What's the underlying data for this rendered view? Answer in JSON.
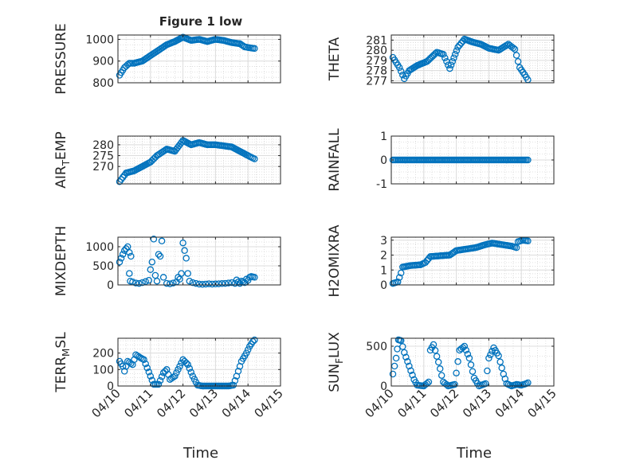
{
  "figure": {
    "title": "Figure 1 low",
    "xlabel": "Time",
    "xtick_labels": [
      "04/10",
      "04/11",
      "04/12",
      "04/13",
      "04/14",
      "04/15"
    ],
    "marker_color": "#0072BD"
  },
  "chart_data": [
    {
      "type": "scatter",
      "name": "pressure",
      "ylabel": "PRESSURE",
      "xlim": [
        0,
        5
      ],
      "ylim": [
        800,
        1020
      ],
      "yticks": [
        800,
        900,
        1000
      ],
      "ytick_labels": [
        "800",
        "900",
        "1000"
      ],
      "series": [
        {
          "name": "PRESSURE",
          "kind": "points",
          "anchors": [
            [
              0.05,
              835
            ],
            [
              0.2,
              870
            ],
            [
              0.35,
              890
            ],
            [
              0.5,
              890
            ],
            [
              0.75,
              900
            ],
            [
              1.0,
              925
            ],
            [
              1.25,
              950
            ],
            [
              1.5,
              975
            ],
            [
              1.75,
              990
            ],
            [
              2.0,
              1010
            ],
            [
              2.25,
              995
            ],
            [
              2.5,
              1000
            ],
            [
              2.75,
              990
            ],
            [
              3.0,
              1000
            ],
            [
              3.25,
              995
            ],
            [
              3.5,
              985
            ],
            [
              3.75,
              980
            ],
            [
              3.9,
              965
            ],
            [
              4.1,
              960
            ],
            [
              4.2,
              958
            ]
          ]
        }
      ]
    },
    {
      "type": "scatter",
      "name": "theta",
      "ylabel": "THETA",
      "xlim": [
        0,
        5
      ],
      "ylim": [
        276.8,
        281.5
      ],
      "yticks": [
        277,
        278,
        279,
        280,
        281
      ],
      "ytick_labels": [
        "277",
        "278",
        "279",
        "280",
        "281"
      ],
      "series": [
        {
          "name": "THETA",
          "kind": "points",
          "anchors": [
            [
              0.05,
              279.3
            ],
            [
              0.25,
              278.3
            ],
            [
              0.4,
              277.2
            ],
            [
              0.55,
              278.0
            ],
            [
              0.8,
              278.5
            ],
            [
              1.1,
              278.9
            ],
            [
              1.4,
              279.8
            ],
            [
              1.6,
              279.6
            ],
            [
              1.8,
              278.2
            ],
            [
              2.05,
              280.3
            ],
            [
              2.25,
              281.1
            ],
            [
              2.5,
              280.8
            ],
            [
              2.75,
              280.6
            ],
            [
              3.0,
              280.2
            ],
            [
              3.3,
              280.0
            ],
            [
              3.6,
              280.6
            ],
            [
              3.8,
              280.1
            ],
            [
              3.95,
              278.3
            ],
            [
              4.1,
              277.6
            ],
            [
              4.2,
              277.1
            ]
          ]
        }
      ]
    },
    {
      "type": "scatter",
      "name": "air-temp",
      "ylabel": "AIR_TEMP",
      "xlim": [
        0,
        5
      ],
      "ylim": [
        262,
        284
      ],
      "yticks": [
        270,
        275,
        280
      ],
      "ytick_labels": [
        "270",
        "275",
        "280"
      ],
      "series": [
        {
          "name": "AIR_TEMP",
          "kind": "points",
          "anchors": [
            [
              0.05,
              263
            ],
            [
              0.25,
              267
            ],
            [
              0.5,
              268
            ],
            [
              0.75,
              270
            ],
            [
              1.0,
              272
            ],
            [
              1.2,
              275
            ],
            [
              1.5,
              278
            ],
            [
              1.75,
              277
            ],
            [
              2.0,
              282
            ],
            [
              2.25,
              280
            ],
            [
              2.5,
              281
            ],
            [
              2.75,
              280
            ],
            [
              3.0,
              280
            ],
            [
              3.25,
              279.5
            ],
            [
              3.5,
              279
            ],
            [
              3.75,
              277
            ],
            [
              4.0,
              275
            ],
            [
              4.2,
              273.5
            ]
          ]
        }
      ]
    },
    {
      "type": "scatter",
      "name": "rainfall",
      "ylabel": "RAINFALL",
      "xlim": [
        0,
        5
      ],
      "ylim": [
        -1,
        1
      ],
      "yticks": [
        -1,
        0,
        1
      ],
      "ytick_labels": [
        "-1",
        "0",
        "1"
      ],
      "series": [
        {
          "name": "RAINFALL",
          "kind": "points",
          "anchors": [
            [
              0.05,
              0
            ],
            [
              4.2,
              0
            ]
          ]
        }
      ]
    },
    {
      "type": "scatter",
      "name": "mixdepth",
      "ylabel": "MIXDEPTH",
      "xlim": [
        0,
        5
      ],
      "ylim": [
        0,
        1250
      ],
      "yticks": [
        0,
        500,
        1000
      ],
      "ytick_labels": [
        "0",
        "500",
        "1000"
      ],
      "series": [
        {
          "name": "MIXDEPTH",
          "kind": "pairs",
          "points": [
            [
              0.05,
              600
            ],
            [
              0.1,
              700
            ],
            [
              0.15,
              800
            ],
            [
              0.2,
              900
            ],
            [
              0.25,
              950
            ],
            [
              0.3,
              1000
            ],
            [
              0.35,
              850
            ],
            [
              0.4,
              750
            ],
            [
              0.35,
              300
            ],
            [
              0.38,
              100
            ],
            [
              0.45,
              80
            ],
            [
              0.55,
              50
            ],
            [
              0.65,
              40
            ],
            [
              0.75,
              60
            ],
            [
              0.85,
              90
            ],
            [
              0.95,
              120
            ],
            [
              1.0,
              400
            ],
            [
              1.05,
              600
            ],
            [
              1.1,
              1200
            ],
            [
              1.15,
              250
            ],
            [
              1.2,
              100
            ],
            [
              1.25,
              800
            ],
            [
              1.3,
              750
            ],
            [
              1.35,
              1150
            ],
            [
              1.4,
              200
            ],
            [
              1.5,
              40
            ],
            [
              1.6,
              30
            ],
            [
              1.7,
              50
            ],
            [
              1.8,
              80
            ],
            [
              1.85,
              200
            ],
            [
              1.9,
              150
            ],
            [
              1.95,
              300
            ],
            [
              2.0,
              1100
            ],
            [
              2.05,
              900
            ],
            [
              2.1,
              700
            ],
            [
              2.15,
              300
            ],
            [
              2.2,
              100
            ],
            [
              2.3,
              60
            ],
            [
              2.4,
              40
            ],
            [
              2.5,
              20
            ],
            [
              2.6,
              15
            ],
            [
              2.7,
              20
            ],
            [
              2.8,
              30
            ],
            [
              2.9,
              20
            ],
            [
              3.0,
              25
            ],
            [
              3.1,
              30
            ],
            [
              3.2,
              35
            ],
            [
              3.3,
              40
            ],
            [
              3.4,
              50
            ],
            [
              3.5,
              60
            ],
            [
              3.6,
              40
            ],
            [
              3.65,
              130
            ],
            [
              3.7,
              80
            ],
            [
              3.75,
              40
            ],
            [
              3.8,
              100
            ],
            [
              3.85,
              80
            ],
            [
              3.9,
              60
            ],
            [
              3.95,
              150
            ],
            [
              4.0,
              120
            ],
            [
              4.05,
              200
            ],
            [
              4.1,
              220
            ],
            [
              4.15,
              210
            ],
            [
              4.2,
              200
            ]
          ]
        }
      ]
    },
    {
      "type": "scatter",
      "name": "h2omixra",
      "ylabel": "H2OMIXRA",
      "xlim": [
        0,
        5
      ],
      "ylim": [
        0,
        3.2
      ],
      "yticks": [
        0,
        1,
        2,
        3
      ],
      "ytick_labels": [
        "0",
        "1",
        "2",
        "3"
      ],
      "series": [
        {
          "name": "H2OMIXRA",
          "kind": "points",
          "anchors": [
            [
              0.05,
              0.1
            ],
            [
              0.2,
              0.2
            ],
            [
              0.3,
              0.8
            ],
            [
              0.35,
              1.2
            ],
            [
              0.6,
              1.3
            ],
            [
              0.9,
              1.35
            ],
            [
              1.05,
              1.5
            ],
            [
              1.2,
              1.9
            ],
            [
              1.5,
              1.95
            ],
            [
              1.8,
              2.0
            ],
            [
              2.0,
              2.3
            ],
            [
              2.3,
              2.4
            ],
            [
              2.6,
              2.5
            ],
            [
              2.9,
              2.7
            ],
            [
              3.1,
              2.8
            ],
            [
              3.4,
              2.7
            ],
            [
              3.7,
              2.6
            ],
            [
              3.85,
              2.5
            ],
            [
              3.9,
              2.9
            ],
            [
              4.05,
              3.0
            ],
            [
              4.2,
              2.95
            ]
          ]
        }
      ]
    },
    {
      "type": "scatter",
      "name": "terr-msl",
      "ylabel": "TERR_MSL",
      "xlim": [
        0,
        5
      ],
      "ylim": [
        0,
        290
      ],
      "yticks": [
        0,
        100,
        200
      ],
      "ytick_labels": [
        "0",
        "100",
        "200"
      ],
      "series": [
        {
          "name": "TERR_MSL",
          "kind": "points",
          "anchors": [
            [
              0.05,
              150
            ],
            [
              0.15,
              120
            ],
            [
              0.2,
              90
            ],
            [
              0.3,
              150
            ],
            [
              0.45,
              130
            ],
            [
              0.55,
              190
            ],
            [
              0.7,
              170
            ],
            [
              0.8,
              160
            ],
            [
              0.9,
              110
            ],
            [
              1.0,
              60
            ],
            [
              1.1,
              10
            ],
            [
              1.25,
              10
            ],
            [
              1.4,
              80
            ],
            [
              1.5,
              100
            ],
            [
              1.6,
              40
            ],
            [
              1.75,
              60
            ],
            [
              1.9,
              120
            ],
            [
              2.0,
              160
            ],
            [
              2.15,
              130
            ],
            [
              2.3,
              60
            ],
            [
              2.45,
              5
            ],
            [
              2.6,
              0
            ],
            [
              3.0,
              0
            ],
            [
              3.4,
              0
            ],
            [
              3.55,
              5
            ],
            [
              3.65,
              60
            ],
            [
              3.8,
              150
            ],
            [
              3.95,
              200
            ],
            [
              4.05,
              240
            ],
            [
              4.15,
              270
            ],
            [
              4.2,
              280
            ]
          ]
        }
      ]
    },
    {
      "type": "scatter",
      "name": "sun-flux",
      "ylabel": "SUN_FLUX",
      "xlim": [
        0,
        5
      ],
      "ylim": [
        0,
        600
      ],
      "yticks": [
        0,
        500
      ],
      "ytick_labels": [
        "0",
        "500"
      ],
      "series": [
        {
          "name": "SUN_FLUX",
          "kind": "points",
          "anchors": [
            [
              0.05,
              150
            ],
            [
              0.15,
              350
            ],
            [
              0.22,
              580
            ],
            [
              0.3,
              570
            ],
            [
              0.4,
              420
            ],
            [
              0.55,
              250
            ],
            [
              0.7,
              80
            ],
            [
              0.8,
              10
            ],
            [
              1.0,
              0
            ],
            [
              1.15,
              50
            ],
            [
              1.2,
              450
            ],
            [
              1.3,
              520
            ],
            [
              1.45,
              300
            ],
            [
              1.6,
              50
            ],
            [
              1.75,
              0
            ],
            [
              1.95,
              20
            ],
            [
              2.1,
              450
            ],
            [
              2.25,
              500
            ],
            [
              2.4,
              350
            ],
            [
              2.55,
              100
            ],
            [
              2.7,
              0
            ],
            [
              2.9,
              30
            ],
            [
              3.0,
              350
            ],
            [
              3.15,
              480
            ],
            [
              3.3,
              380
            ],
            [
              3.45,
              150
            ],
            [
              3.55,
              30
            ],
            [
              3.7,
              0
            ],
            [
              3.85,
              20
            ],
            [
              4.0,
              10
            ],
            [
              4.15,
              30
            ],
            [
              4.2,
              40
            ]
          ]
        }
      ]
    }
  ]
}
